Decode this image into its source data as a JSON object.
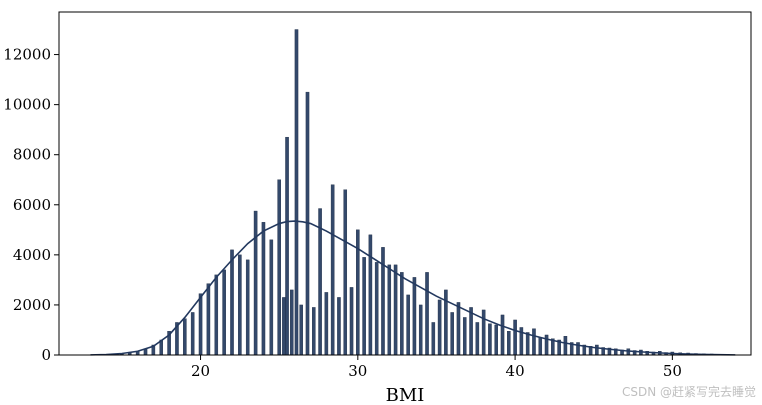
{
  "chart_data": {
    "type": "histogram",
    "title": "",
    "xlabel": "BMI",
    "ylabel": "",
    "xlim": [
      11.0,
      55.0
    ],
    "ylim": [
      0,
      13700
    ],
    "x_ticks": [
      20,
      30,
      40,
      50
    ],
    "y_ticks": [
      0,
      2000,
      4000,
      6000,
      8000,
      10000,
      12000
    ],
    "bin_width": 0.2,
    "bar_color": "#34496b",
    "kde_color": "#23395f",
    "grid": false,
    "legend": "none",
    "bins": [
      {
        "x": 14.0,
        "count": 10
      },
      {
        "x": 14.5,
        "count": 20
      },
      {
        "x": 15.0,
        "count": 40
      },
      {
        "x": 15.5,
        "count": 80
      },
      {
        "x": 16.0,
        "count": 150
      },
      {
        "x": 16.5,
        "count": 250
      },
      {
        "x": 17.0,
        "count": 400
      },
      {
        "x": 17.5,
        "count": 600
      },
      {
        "x": 18.0,
        "count": 950
      },
      {
        "x": 18.5,
        "count": 1300
      },
      {
        "x": 19.0,
        "count": 1450
      },
      {
        "x": 19.5,
        "count": 1700
      },
      {
        "x": 20.0,
        "count": 2450
      },
      {
        "x": 20.5,
        "count": 2850
      },
      {
        "x": 21.0,
        "count": 3200
      },
      {
        "x": 21.5,
        "count": 3400
      },
      {
        "x": 22.0,
        "count": 4200
      },
      {
        "x": 22.5,
        "count": 4000
      },
      {
        "x": 23.0,
        "count": 3800
      },
      {
        "x": 23.5,
        "count": 5750
      },
      {
        "x": 24.0,
        "count": 5300
      },
      {
        "x": 24.5,
        "count": 4600
      },
      {
        "x": 25.0,
        "count": 7000
      },
      {
        "x": 25.3,
        "count": 2300
      },
      {
        "x": 25.5,
        "count": 8700
      },
      {
        "x": 25.8,
        "count": 2600
      },
      {
        "x": 26.1,
        "count": 13000
      },
      {
        "x": 26.4,
        "count": 2000
      },
      {
        "x": 26.8,
        "count": 10500
      },
      {
        "x": 27.2,
        "count": 1900
      },
      {
        "x": 27.6,
        "count": 5850
      },
      {
        "x": 28.0,
        "count": 2500
      },
      {
        "x": 28.4,
        "count": 6800
      },
      {
        "x": 28.8,
        "count": 2300
      },
      {
        "x": 29.2,
        "count": 6600
      },
      {
        "x": 29.6,
        "count": 2700
      },
      {
        "x": 30.0,
        "count": 5000
      },
      {
        "x": 30.4,
        "count": 3900
      },
      {
        "x": 30.8,
        "count": 4800
      },
      {
        "x": 31.2,
        "count": 3700
      },
      {
        "x": 31.6,
        "count": 4300
      },
      {
        "x": 32.0,
        "count": 3600
      },
      {
        "x": 32.4,
        "count": 3600
      },
      {
        "x": 32.8,
        "count": 3300
      },
      {
        "x": 33.2,
        "count": 2400
      },
      {
        "x": 33.6,
        "count": 3100
      },
      {
        "x": 34.0,
        "count": 2000
      },
      {
        "x": 34.4,
        "count": 3300
      },
      {
        "x": 34.8,
        "count": 1300
      },
      {
        "x": 35.2,
        "count": 2200
      },
      {
        "x": 35.6,
        "count": 2600
      },
      {
        "x": 36.0,
        "count": 1700
      },
      {
        "x": 36.4,
        "count": 2100
      },
      {
        "x": 36.8,
        "count": 1500
      },
      {
        "x": 37.2,
        "count": 1900
      },
      {
        "x": 37.6,
        "count": 1300
      },
      {
        "x": 38.0,
        "count": 1800
      },
      {
        "x": 38.4,
        "count": 1250
      },
      {
        "x": 38.8,
        "count": 1200
      },
      {
        "x": 39.2,
        "count": 1600
      },
      {
        "x": 39.6,
        "count": 950
      },
      {
        "x": 40.0,
        "count": 1400
      },
      {
        "x": 40.4,
        "count": 1100
      },
      {
        "x": 40.8,
        "count": 900
      },
      {
        "x": 41.2,
        "count": 1050
      },
      {
        "x": 41.6,
        "count": 700
      },
      {
        "x": 42.0,
        "count": 800
      },
      {
        "x": 42.4,
        "count": 650
      },
      {
        "x": 42.8,
        "count": 600
      },
      {
        "x": 43.2,
        "count": 750
      },
      {
        "x": 43.6,
        "count": 500
      },
      {
        "x": 44.0,
        "count": 500
      },
      {
        "x": 44.4,
        "count": 400
      },
      {
        "x": 44.8,
        "count": 350
      },
      {
        "x": 45.2,
        "count": 400
      },
      {
        "x": 45.6,
        "count": 300
      },
      {
        "x": 46.0,
        "count": 280
      },
      {
        "x": 46.4,
        "count": 250
      },
      {
        "x": 46.8,
        "count": 200
      },
      {
        "x": 47.2,
        "count": 250
      },
      {
        "x": 47.6,
        "count": 180
      },
      {
        "x": 48.0,
        "count": 200
      },
      {
        "x": 48.4,
        "count": 150
      },
      {
        "x": 48.8,
        "count": 120
      },
      {
        "x": 49.2,
        "count": 150
      },
      {
        "x": 49.6,
        "count": 100
      },
      {
        "x": 50.0,
        "count": 120
      },
      {
        "x": 50.5,
        "count": 90
      },
      {
        "x": 51.0,
        "count": 80
      },
      {
        "x": 51.5,
        "count": 60
      },
      {
        "x": 52.0,
        "count": 50
      },
      {
        "x": 52.5,
        "count": 40
      },
      {
        "x": 53.0,
        "count": 30
      },
      {
        "x": 53.5,
        "count": 20
      }
    ],
    "kde": {
      "x": [
        13,
        14,
        15,
        16,
        17,
        18,
        19,
        20,
        21,
        22,
        23,
        24,
        25,
        25.5,
        26,
        26.5,
        27,
        28,
        29,
        30,
        31,
        32,
        33,
        34,
        35,
        36,
        37,
        38,
        39,
        40,
        41,
        42,
        43,
        44,
        45,
        46,
        47,
        48,
        49,
        50,
        51,
        52,
        53,
        54
      ],
      "y": [
        5,
        20,
        60,
        150,
        350,
        800,
        1500,
        2300,
        3100,
        3800,
        4450,
        4950,
        5250,
        5330,
        5350,
        5320,
        5250,
        4950,
        4600,
        4250,
        3850,
        3450,
        3050,
        2700,
        2350,
        2050,
        1750,
        1450,
        1200,
        980,
        800,
        640,
        500,
        390,
        300,
        230,
        170,
        125,
        90,
        60,
        40,
        25,
        12,
        5
      ]
    }
  },
  "watermark": "CSDN @赶紧写完去睡觉"
}
